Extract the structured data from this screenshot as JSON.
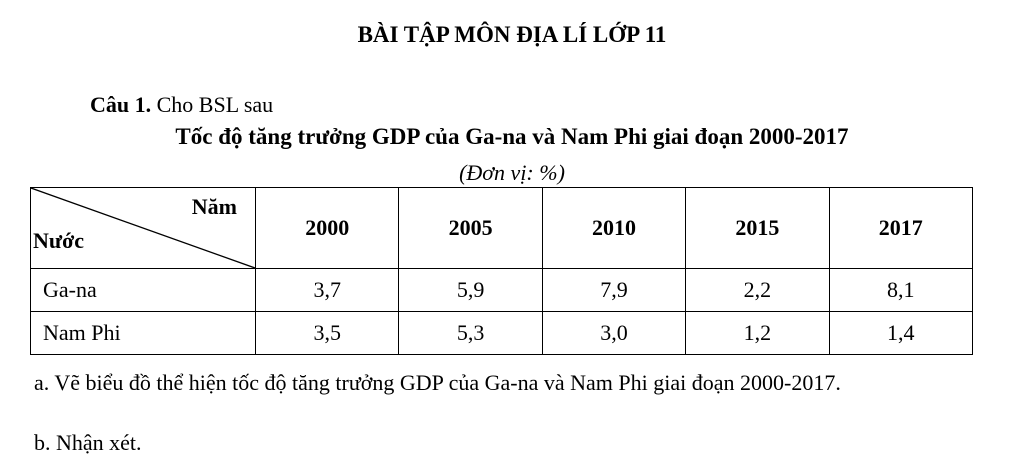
{
  "title": "BÀI TẬP MÔN ĐỊA LÍ LỚP 11",
  "question": {
    "number": "Câu 1.",
    "text": "Cho BSL sau"
  },
  "table_title": "Tốc độ tăng trưởng GDP của Ga-na và Nam Phi giai đoạn 2000-2017",
  "unit": "(Đơn vị: %)",
  "table": {
    "corner_top": "Năm",
    "corner_bottom": "Nước",
    "years": [
      "2000",
      "2005",
      "2010",
      "2015",
      "2017"
    ],
    "rows": [
      {
        "country": "Ga-na",
        "values": [
          "3,7",
          "5,9",
          "7,9",
          "2,2",
          "8,1"
        ]
      },
      {
        "country": "Nam Phi",
        "values": [
          "3,5",
          "5,3",
          "3,0",
          "1,2",
          "1,4"
        ]
      }
    ]
  },
  "tasks": {
    "a": "a. Vẽ biểu đồ thể hiện tốc độ tăng trưởng GDP của Ga-na và Nam Phi giai đoạn 2000-2017.",
    "b": "b. Nhận xét."
  }
}
